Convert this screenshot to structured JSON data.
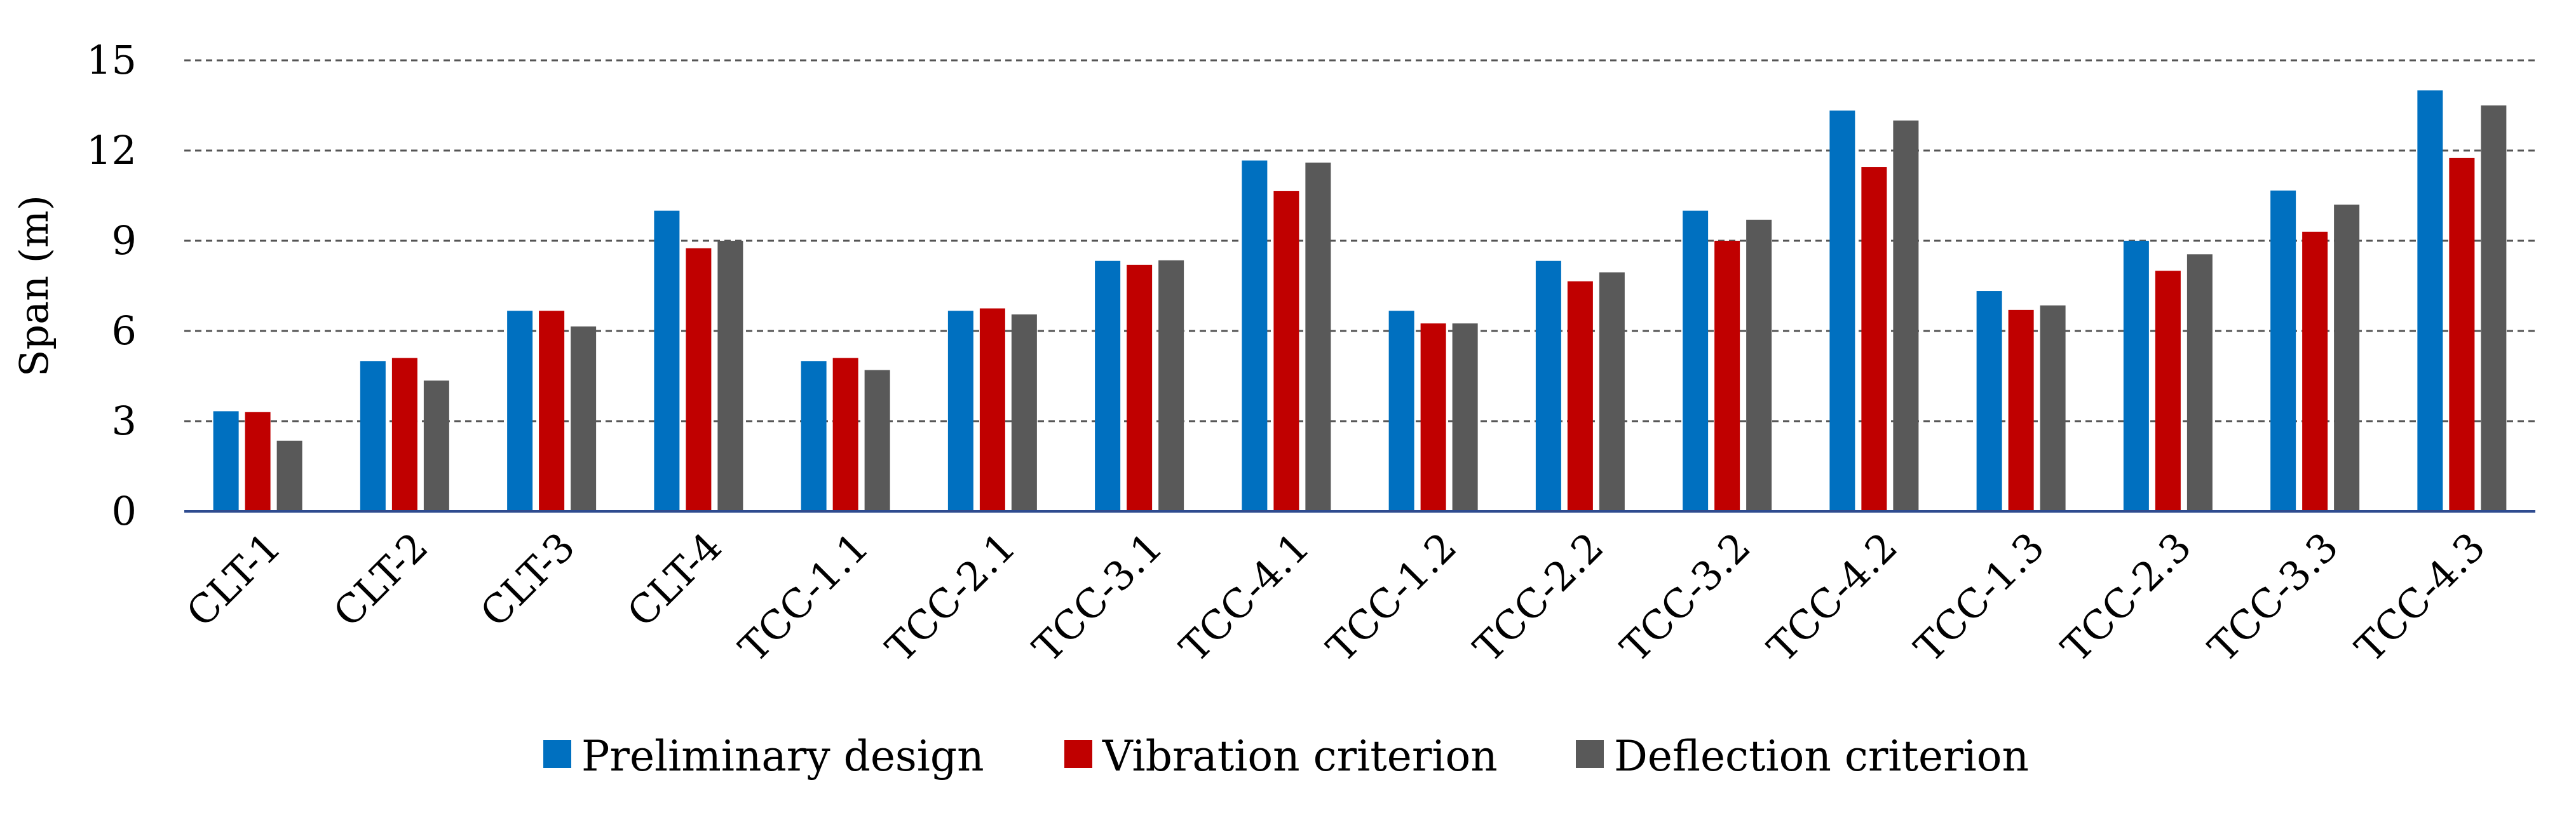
{
  "chart_data": {
    "type": "bar",
    "title": "",
    "xlabel": "",
    "ylabel": "Span (m)",
    "ylim": [
      0,
      15
    ],
    "yticks": [
      0,
      3,
      6,
      9,
      12,
      15
    ],
    "grid": true,
    "legend_position": "bottom",
    "categories": [
      "CLT-1",
      "CLT-2",
      "CLT-3",
      "CLT-4",
      "TCC-1.1",
      "TCC-2.1",
      "TCC-3.1",
      "TCC-4.1",
      "TCC-1.2",
      "TCC-2.2",
      "TCC-3.2",
      "TCC-4.2",
      "TCC-1.3",
      "TCC-2.3",
      "TCC-3.3",
      "TCC-4.3"
    ],
    "series": [
      {
        "name": "Preliminary design",
        "color": "#0070c0",
        "values": [
          3.33,
          5.0,
          6.67,
          10.0,
          5.0,
          6.67,
          8.33,
          11.67,
          6.67,
          8.33,
          10.0,
          13.33,
          7.33,
          9.0,
          10.67,
          14.0
        ]
      },
      {
        "name": "Vibration criterion",
        "color": "#c00000",
        "values": [
          3.3,
          5.1,
          6.67,
          8.75,
          5.1,
          6.75,
          8.2,
          10.65,
          6.25,
          7.65,
          9.0,
          11.45,
          6.7,
          8.0,
          9.3,
          11.75
        ]
      },
      {
        "name": "Deflection criterion",
        "color": "#595959",
        "values": [
          2.35,
          4.35,
          6.15,
          9.0,
          4.7,
          6.55,
          8.35,
          11.6,
          6.25,
          7.95,
          9.7,
          13.0,
          6.85,
          8.55,
          10.2,
          13.5
        ]
      }
    ]
  }
}
